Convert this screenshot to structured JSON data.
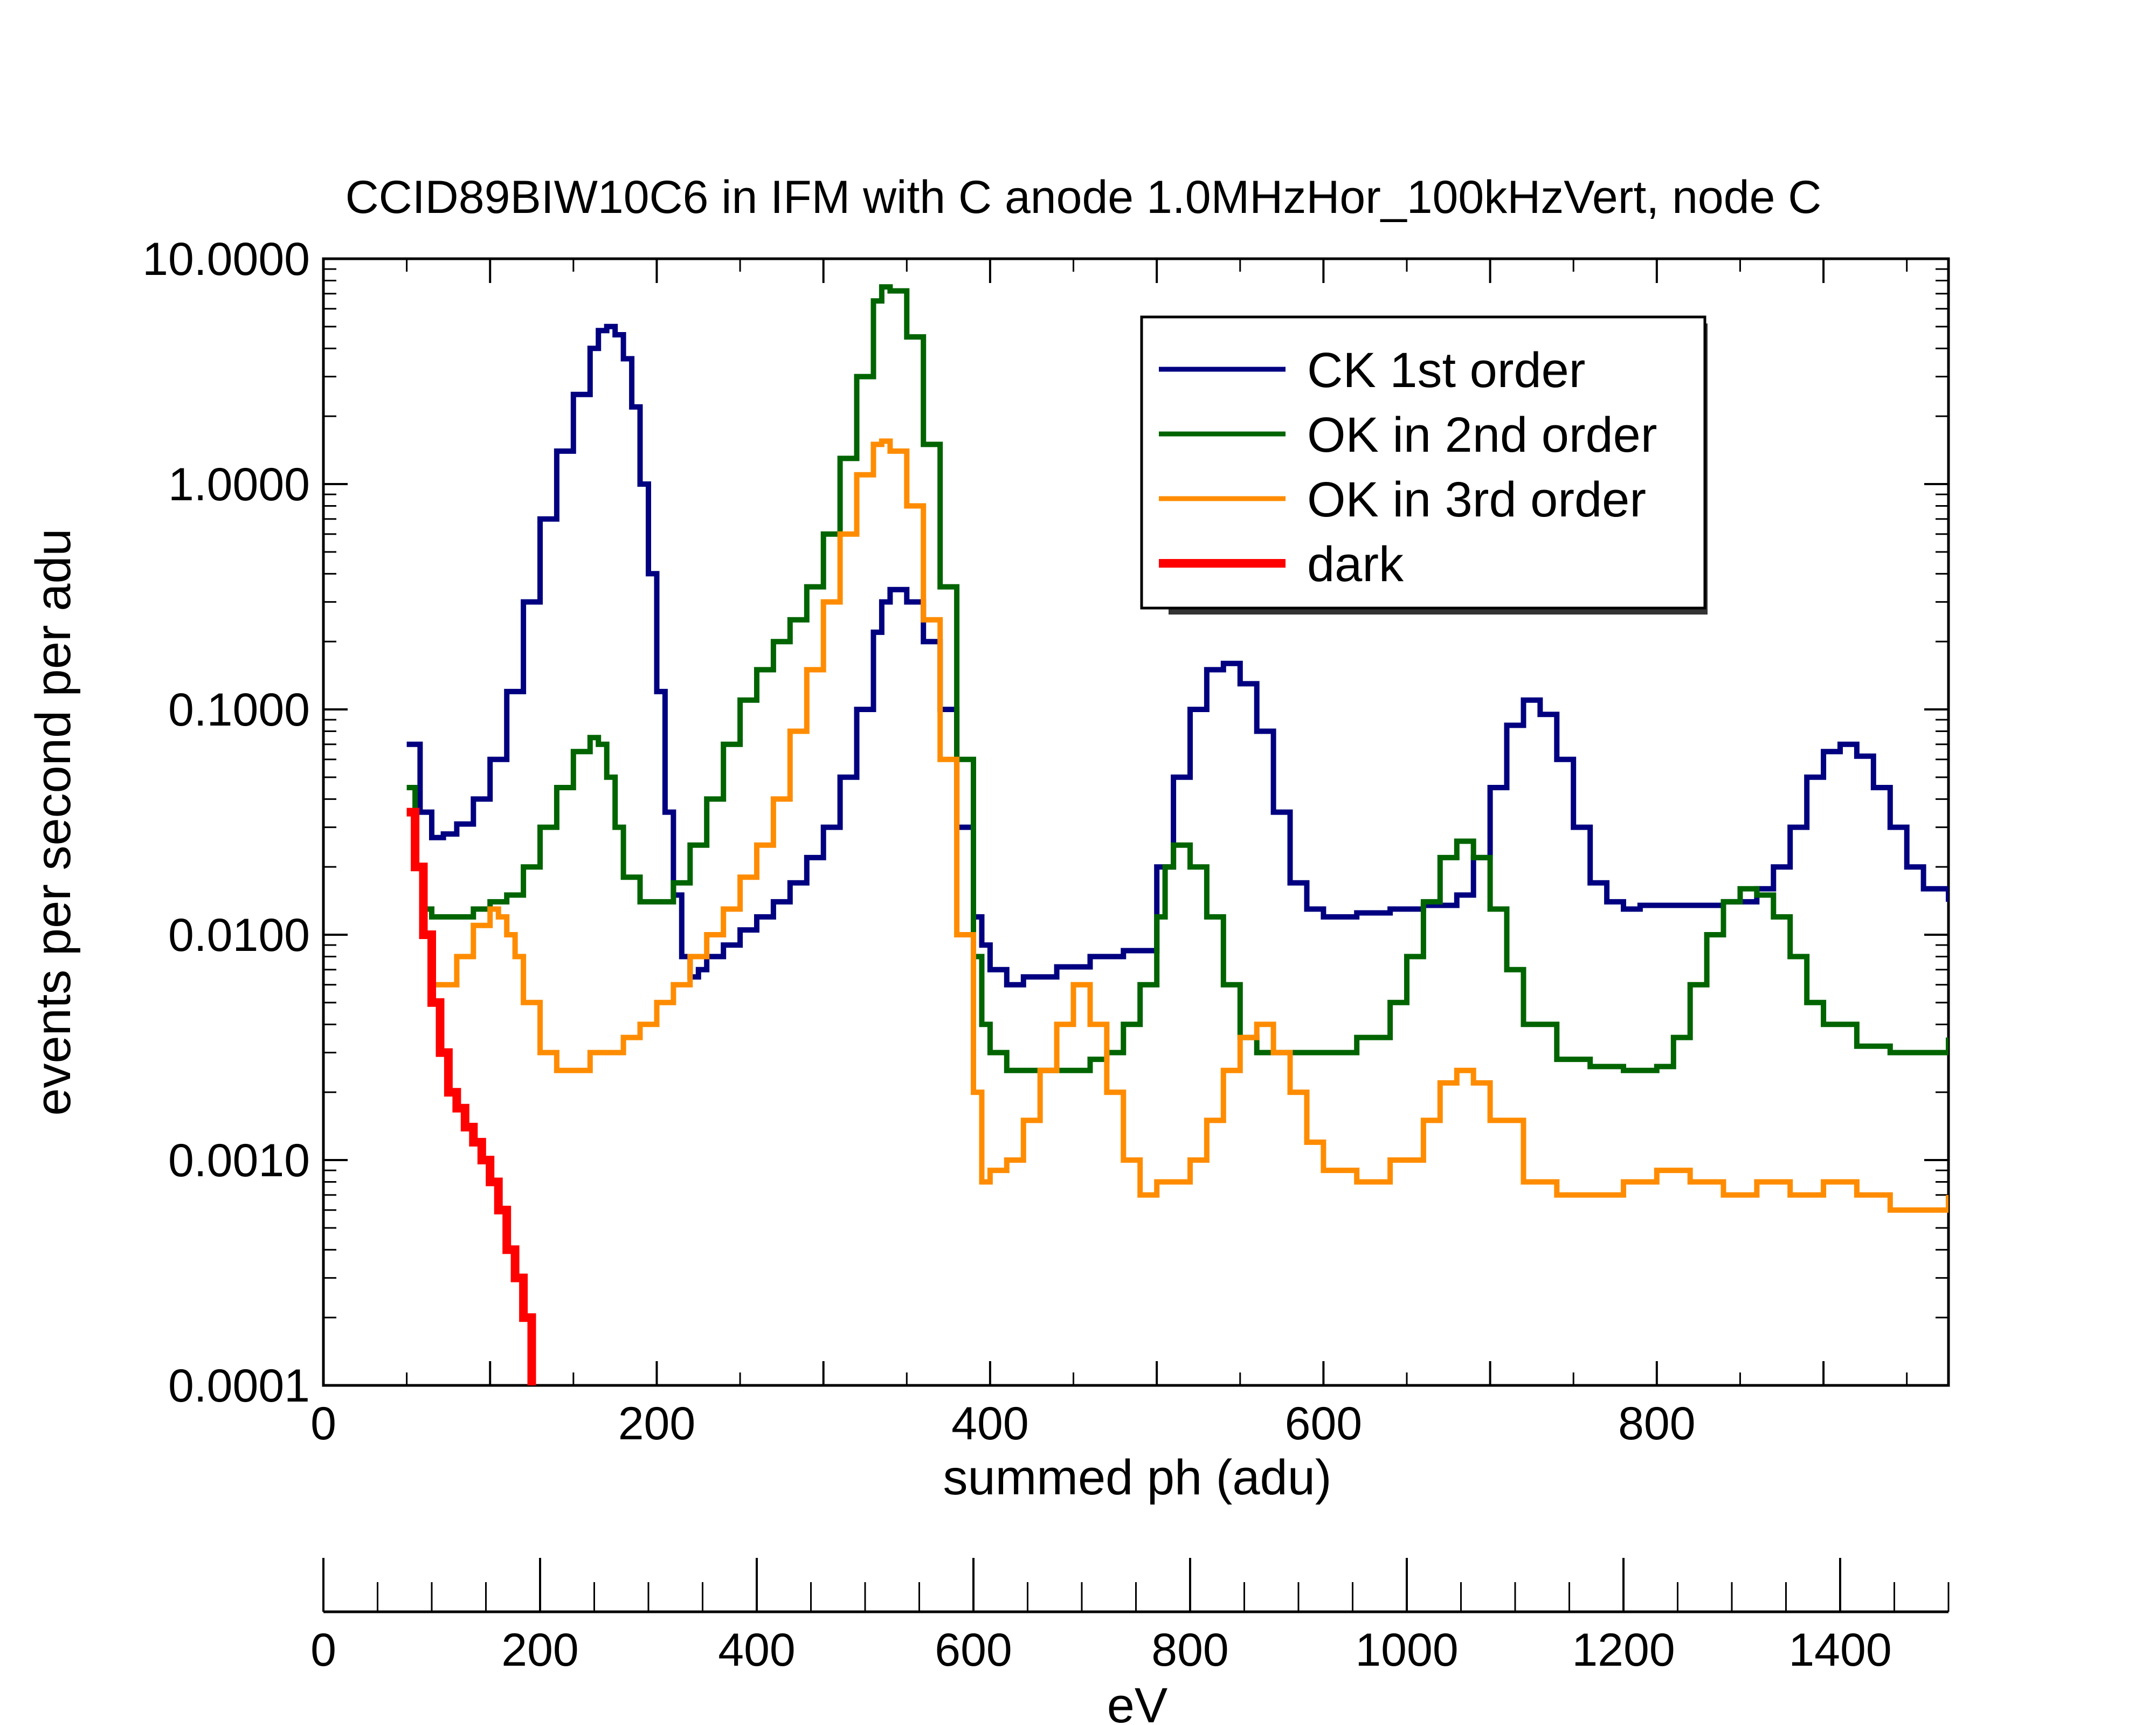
{
  "chart_data": {
    "type": "line",
    "title": "CCID89BIW10C6 in IFM with C anode 1.0MHzHor_100kHzVert, node C",
    "xlabel": "summed ph (adu)",
    "ylabel": "events per second per adu",
    "x2label": "eV",
    "xlim": [
      0,
      975
    ],
    "ylim": [
      0.0001,
      10
    ],
    "yscale": "log",
    "x2lim": [
      0,
      1500
    ],
    "x_ticks": [
      0,
      200,
      400,
      600,
      800
    ],
    "x2_ticks": [
      0,
      200,
      400,
      600,
      800,
      1000,
      1200,
      1400
    ],
    "y_ticks": [
      {
        "value": 10,
        "label": "10.0000"
      },
      {
        "value": 1,
        "label": "1.0000"
      },
      {
        "value": 0.1,
        "label": "0.1000"
      },
      {
        "value": 0.01,
        "label": "0.0100"
      },
      {
        "value": 0.001,
        "label": "0.0010"
      },
      {
        "value": 0.0001,
        "label": "0.0001"
      }
    ],
    "legend_position": "top-right",
    "series": [
      {
        "name": "CK 1st order",
        "color": "#000080",
        "x": [
          50,
          58,
          65,
          72,
          80,
          90,
          100,
          110,
          120,
          130,
          140,
          150,
          160,
          165,
          170,
          175,
          180,
          185,
          190,
          195,
          200,
          205,
          210,
          215,
          220,
          225,
          230,
          240,
          250,
          260,
          270,
          280,
          290,
          300,
          310,
          320,
          330,
          335,
          340,
          350,
          360,
          370,
          380,
          390,
          395,
          400,
          410,
          420,
          440,
          460,
          480,
          500,
          510,
          520,
          530,
          540,
          550,
          560,
          570,
          580,
          590,
          600,
          620,
          640,
          660,
          680,
          690,
          700,
          710,
          720,
          730,
          740,
          750,
          760,
          770,
          780,
          790,
          800,
          820,
          840,
          860,
          870,
          880,
          890,
          900,
          910,
          920,
          930,
          940,
          950,
          960,
          975
        ],
        "y": [
          0.07,
          0.035,
          0.027,
          0.028,
          0.031,
          0.04,
          0.06,
          0.12,
          0.3,
          0.7,
          1.4,
          2.5,
          4.0,
          4.8,
          5.0,
          4.6,
          3.6,
          2.2,
          1.0,
          0.4,
          0.12,
          0.035,
          0.015,
          0.008,
          0.0065,
          0.007,
          0.008,
          0.009,
          0.0105,
          0.012,
          0.014,
          0.017,
          0.022,
          0.03,
          0.05,
          0.1,
          0.22,
          0.3,
          0.34,
          0.3,
          0.2,
          0.1,
          0.03,
          0.012,
          0.009,
          0.007,
          0.006,
          0.0065,
          0.0072,
          0.008,
          0.0085,
          0.02,
          0.05,
          0.1,
          0.15,
          0.16,
          0.13,
          0.08,
          0.035,
          0.017,
          0.013,
          0.012,
          0.0125,
          0.013,
          0.0135,
          0.015,
          0.022,
          0.045,
          0.085,
          0.11,
          0.095,
          0.06,
          0.03,
          0.017,
          0.014,
          0.013,
          0.0135,
          0.0135,
          0.0135,
          0.014,
          0.016,
          0.02,
          0.03,
          0.05,
          0.065,
          0.07,
          0.062,
          0.045,
          0.03,
          0.02,
          0.016,
          0.014
        ]
      },
      {
        "name": "OK in 2nd order",
        "color": "#006400",
        "x": [
          50,
          55,
          60,
          65,
          70,
          80,
          90,
          100,
          110,
          120,
          130,
          140,
          150,
          160,
          165,
          170,
          175,
          180,
          190,
          200,
          210,
          220,
          230,
          240,
          250,
          260,
          270,
          280,
          290,
          300,
          310,
          320,
          330,
          335,
          340,
          350,
          360,
          370,
          380,
          390,
          395,
          400,
          410,
          420,
          440,
          460,
          470,
          480,
          490,
          500,
          505,
          510,
          520,
          530,
          540,
          550,
          560,
          580,
          600,
          620,
          640,
          650,
          660,
          670,
          680,
          690,
          700,
          710,
          720,
          740,
          760,
          780,
          800,
          810,
          820,
          830,
          840,
          850,
          860,
          870,
          880,
          890,
          900,
          920,
          940,
          960,
          975
        ],
        "y": [
          0.045,
          0.02,
          0.013,
          0.012,
          0.012,
          0.012,
          0.013,
          0.014,
          0.015,
          0.02,
          0.03,
          0.045,
          0.065,
          0.075,
          0.07,
          0.05,
          0.03,
          0.018,
          0.014,
          0.014,
          0.017,
          0.025,
          0.04,
          0.07,
          0.11,
          0.15,
          0.2,
          0.25,
          0.35,
          0.6,
          1.3,
          3.0,
          6.5,
          7.5,
          7.2,
          4.5,
          1.5,
          0.35,
          0.06,
          0.008,
          0.004,
          0.003,
          0.0025,
          0.0025,
          0.0025,
          0.0028,
          0.003,
          0.004,
          0.006,
          0.012,
          0.02,
          0.025,
          0.02,
          0.012,
          0.006,
          0.0035,
          0.003,
          0.003,
          0.003,
          0.0035,
          0.005,
          0.008,
          0.014,
          0.022,
          0.026,
          0.022,
          0.013,
          0.007,
          0.004,
          0.0028,
          0.0026,
          0.0025,
          0.0026,
          0.0035,
          0.006,
          0.01,
          0.014,
          0.016,
          0.015,
          0.012,
          0.008,
          0.005,
          0.004,
          0.0032,
          0.003,
          0.003,
          0.0035
        ]
      },
      {
        "name": "OK in 3rd order",
        "color": "#FF8C00",
        "x": [
          50,
          55,
          60,
          65,
          70,
          80,
          90,
          100,
          105,
          110,
          115,
          120,
          130,
          140,
          150,
          160,
          170,
          180,
          190,
          200,
          210,
          220,
          230,
          240,
          250,
          260,
          270,
          280,
          290,
          300,
          310,
          320,
          330,
          335,
          340,
          350,
          360,
          370,
          380,
          390,
          395,
          400,
          410,
          420,
          430,
          440,
          450,
          460,
          470,
          480,
          490,
          500,
          510,
          520,
          530,
          540,
          550,
          560,
          570,
          580,
          590,
          600,
          620,
          640,
          660,
          670,
          680,
          690,
          700,
          720,
          740,
          760,
          780,
          800,
          820,
          840,
          860,
          880,
          900,
          920,
          940,
          960,
          975
        ],
        "y": [
          0.035,
          0.02,
          0.01,
          0.006,
          0.006,
          0.008,
          0.011,
          0.013,
          0.012,
          0.01,
          0.008,
          0.005,
          0.003,
          0.0025,
          0.0025,
          0.003,
          0.003,
          0.0035,
          0.004,
          0.005,
          0.006,
          0.008,
          0.01,
          0.013,
          0.018,
          0.025,
          0.04,
          0.08,
          0.15,
          0.3,
          0.6,
          1.1,
          1.5,
          1.55,
          1.4,
          0.8,
          0.25,
          0.06,
          0.01,
          0.002,
          0.0008,
          0.0009,
          0.001,
          0.0015,
          0.0025,
          0.004,
          0.006,
          0.004,
          0.002,
          0.001,
          0.0007,
          0.0008,
          0.0008,
          0.001,
          0.0015,
          0.0025,
          0.0035,
          0.004,
          0.003,
          0.002,
          0.0012,
          0.0009,
          0.0008,
          0.001,
          0.0015,
          0.0022,
          0.0025,
          0.0022,
          0.0015,
          0.0008,
          0.0007,
          0.0007,
          0.0008,
          0.0009,
          0.0008,
          0.0007,
          0.0008,
          0.0007,
          0.0008,
          0.0007,
          0.0006,
          0.0006,
          0.0007
        ]
      },
      {
        "name": "dark",
        "color": "#FF0000",
        "x": [
          50,
          55,
          60,
          65,
          70,
          75,
          80,
          85,
          90,
          95,
          100,
          105,
          110,
          115,
          120,
          125
        ],
        "y": [
          0.035,
          0.02,
          0.01,
          0.005,
          0.003,
          0.002,
          0.0017,
          0.0014,
          0.0012,
          0.001,
          0.0008,
          0.0006,
          0.0004,
          0.0003,
          0.0002,
          0.0001
        ]
      }
    ]
  }
}
